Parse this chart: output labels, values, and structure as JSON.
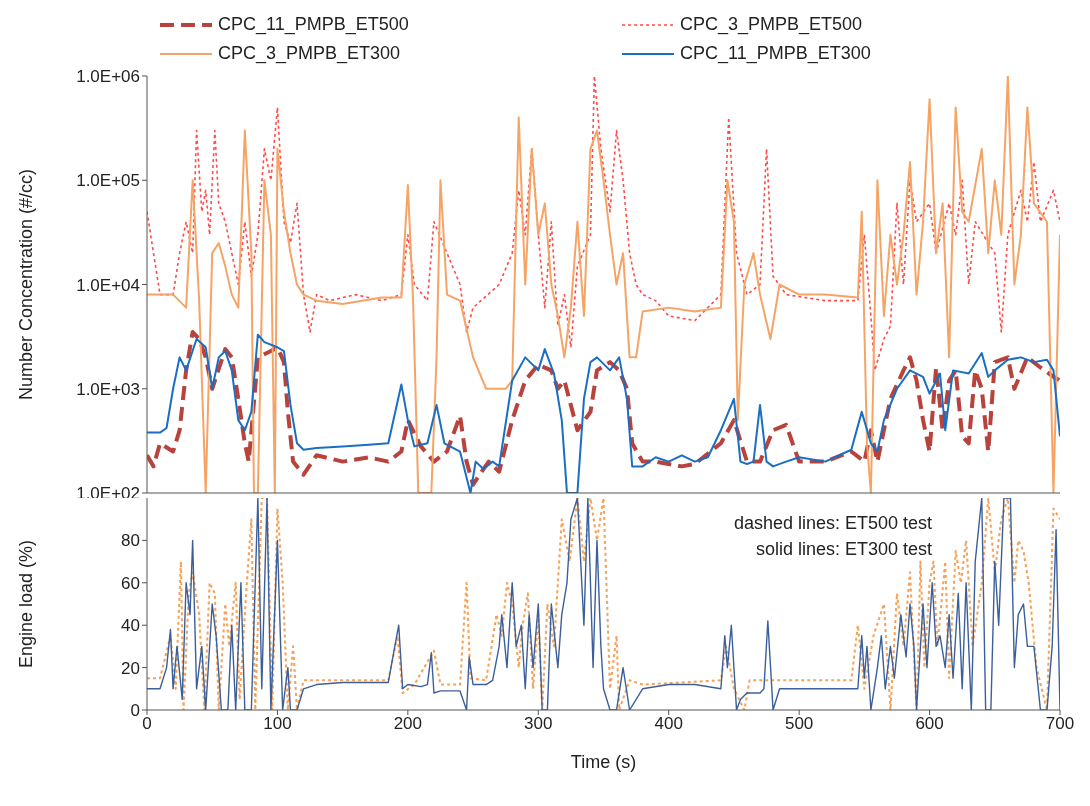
{
  "chart_data": [
    {
      "type": "line",
      "ylabel": "Number Concentration (#/cc)",
      "log": "y",
      "legend": "top",
      "tick_labels": "y",
      "xlim": [
        0,
        700
      ],
      "xticks": [
        0,
        100,
        200,
        300,
        400,
        500,
        600,
        700
      ],
      "ylim": [
        100,
        1000000
      ],
      "yticks": [
        {
          "value": 100,
          "label": "1.0E+02"
        },
        {
          "value": 1000,
          "label": "1.0E+03"
        },
        {
          "value": 10000,
          "label": "1.0E+04"
        },
        {
          "value": 100000,
          "label": "1.0E+05"
        },
        {
          "value": 1000000,
          "label": "1.0E+06"
        }
      ],
      "grid": false,
      "series": [
        {
          "name": "CPC_11_PMPB_ET500",
          "color": "#b8423c",
          "line_style": "dashed",
          "x": [
            0,
            5,
            10,
            20,
            25,
            30,
            35,
            40,
            45,
            50,
            60,
            65,
            70,
            75,
            78,
            85,
            95,
            100,
            105,
            108,
            112,
            120,
            130,
            150,
            170,
            185,
            195,
            200,
            210,
            220,
            230,
            240,
            245,
            250,
            255,
            262,
            270,
            280,
            290,
            300,
            310,
            315,
            320,
            330,
            340,
            345,
            355,
            362,
            368,
            372,
            380,
            390,
            410,
            420,
            440,
            450,
            460,
            470,
            480,
            490,
            500,
            520,
            540,
            550,
            555,
            560,
            570,
            580,
            585,
            590,
            595,
            600,
            605,
            610,
            615,
            620,
            625,
            630,
            635,
            640,
            645,
            650,
            660,
            665,
            675,
            685,
            695,
            700
          ],
          "values": [
            230,
            180,
            300,
            250,
            400,
            1500,
            3500,
            3000,
            2000,
            1000,
            2400,
            2000,
            800,
            300,
            200,
            2000,
            2300,
            2500,
            1800,
            600,
            200,
            150,
            230,
            200,
            220,
            200,
            250,
            500,
            280,
            200,
            250,
            550,
            200,
            120,
            150,
            200,
            160,
            500,
            1200,
            1700,
            1500,
            1000,
            1200,
            400,
            600,
            1500,
            1800,
            1500,
            1000,
            300,
            200,
            200,
            180,
            190,
            300,
            500,
            200,
            200,
            400,
            450,
            200,
            200,
            250,
            200,
            400,
            200,
            800,
            1500,
            2000,
            1200,
            500,
            250,
            1600,
            400,
            1200,
            1500,
            350,
            300,
            1500,
            1000,
            250,
            1800,
            2000,
            1000,
            2000,
            1600,
            1300,
            1200
          ]
        },
        {
          "name": "CPC_3_PMPB_ET500",
          "color": "#ff4a4a",
          "line_style": "dotted",
          "x": [
            0,
            5,
            10,
            20,
            25,
            30,
            35,
            38,
            42,
            45,
            48,
            52,
            55,
            60,
            65,
            70,
            75,
            80,
            85,
            90,
            95,
            100,
            105,
            110,
            115,
            120,
            125,
            130,
            140,
            160,
            180,
            195,
            200,
            205,
            215,
            220,
            230,
            240,
            245,
            250,
            270,
            280,
            285,
            290,
            295,
            300,
            305,
            310,
            315,
            320,
            325,
            330,
            340,
            343,
            348,
            355,
            360,
            365,
            370,
            375,
            380,
            390,
            400,
            420,
            440,
            446,
            452,
            460,
            470,
            475,
            480,
            490,
            520,
            545,
            550,
            555,
            558,
            565,
            570,
            575,
            580,
            585,
            590,
            600,
            605,
            615,
            620,
            625,
            630,
            635,
            645,
            650,
            655,
            660,
            670,
            675,
            680,
            685,
            695,
            700
          ],
          "values": [
            50000,
            20000,
            8000,
            8000,
            20000,
            40000,
            20000,
            300000,
            50000,
            80000,
            30000,
            300000,
            60000,
            40000,
            20000,
            10000,
            40000,
            12000,
            30000,
            200000,
            100000,
            500000,
            40000,
            25000,
            60000,
            8000,
            3500,
            8000,
            7000,
            8000,
            7000,
            8000,
            30000,
            10000,
            7000,
            40000,
            20000,
            10000,
            3500,
            6000,
            10000,
            20000,
            80000,
            30000,
            200000,
            30000,
            6000,
            40000,
            4000,
            8000,
            2500,
            15000,
            30000,
            1000000,
            200000,
            50000,
            300000,
            100000,
            20000,
            10000,
            8000,
            7000,
            5000,
            4500,
            8000,
            400000,
            20000,
            8000,
            10000,
            200000,
            12000,
            8000,
            7000,
            7000,
            30000,
            5000,
            1500,
            3000,
            4000,
            60000,
            10000,
            100000,
            40000,
            60000,
            20000,
            60000,
            30000,
            100000,
            10000,
            40000,
            25000,
            20000,
            3500,
            30000,
            80000,
            40000,
            150000,
            40000,
            80000,
            40000
          ]
        },
        {
          "name": "CPC_3_PMPB_ET300",
          "color": "#f5a466",
          "line_style": "solid",
          "x": [
            0,
            20,
            30,
            35,
            40,
            45,
            50,
            55,
            60,
            65,
            70,
            75,
            80,
            82,
            85,
            90,
            95,
            98,
            100,
            105,
            110,
            115,
            120,
            130,
            150,
            180,
            195,
            200,
            204,
            208,
            218,
            222,
            225,
            230,
            240,
            250,
            260,
            275,
            280,
            285,
            290,
            295,
            300,
            305,
            310,
            315,
            320,
            325,
            330,
            335,
            340,
            345,
            350,
            355,
            360,
            365,
            370,
            375,
            380,
            400,
            420,
            440,
            445,
            450,
            453,
            458,
            465,
            470,
            478,
            485,
            500,
            520,
            545,
            548,
            552,
            555,
            560,
            565,
            570,
            575,
            580,
            585,
            590,
            595,
            600,
            605,
            610,
            615,
            620,
            625,
            630,
            640,
            645,
            650,
            655,
            660,
            665,
            670,
            675,
            680,
            690,
            695,
            700
          ],
          "values": [
            8000,
            8000,
            6000,
            100000,
            7000,
            100,
            20000,
            25000,
            15000,
            8000,
            6000,
            300000,
            20000,
            100,
            100,
            100000,
            30000,
            100,
            200000,
            50000,
            20000,
            10000,
            8000,
            7000,
            6500,
            7500,
            7500,
            90000,
            7000,
            100,
            100,
            2000,
            100000,
            8000,
            7000,
            2000,
            1000,
            1000,
            1200,
            400000,
            10000,
            200000,
            30000,
            60000,
            10000,
            5000,
            2000,
            6000,
            40000,
            5000,
            200000,
            300000,
            100000,
            30000,
            10000,
            20000,
            2000,
            2000,
            5500,
            6000,
            5500,
            6000,
            100000,
            40000,
            500,
            10000,
            20000,
            8000,
            3000,
            10000,
            8000,
            8000,
            7500,
            50000,
            300,
            100,
            100000,
            5000,
            30000,
            10000,
            30000,
            150000,
            8000,
            40000,
            600000,
            20000,
            60000,
            2000,
            500000,
            50000,
            40000,
            200000,
            20000,
            100000,
            30000,
            1000000,
            10000,
            30000,
            500000,
            60000,
            40000,
            100,
            30000
          ]
        },
        {
          "name": "CPC_11_PMPB_ET300",
          "color": "#1a6fc2",
          "line_style": "solid",
          "x": [
            0,
            10,
            15,
            20,
            25,
            30,
            38,
            45,
            50,
            55,
            60,
            65,
            70,
            75,
            80,
            85,
            90,
            100,
            105,
            110,
            115,
            120,
            130,
            150,
            170,
            185,
            195,
            200,
            205,
            215,
            222,
            228,
            240,
            248,
            252,
            258,
            265,
            270,
            280,
            290,
            300,
            305,
            312,
            318,
            322,
            330,
            335,
            340,
            345,
            355,
            362,
            368,
            372,
            380,
            390,
            400,
            410,
            420,
            430,
            440,
            450,
            455,
            460,
            465,
            470,
            475,
            480,
            490,
            500,
            520,
            540,
            548,
            555,
            560,
            565,
            575,
            585,
            595,
            600,
            608,
            612,
            618,
            630,
            640,
            645,
            650,
            660,
            670,
            680,
            690,
            695,
            700
          ],
          "values": [
            380,
            380,
            420,
            1000,
            2000,
            1500,
            3000,
            2500,
            1000,
            2000,
            2300,
            1500,
            500,
            400,
            600,
            3300,
            2800,
            2500,
            2300,
            700,
            300,
            260,
            270,
            280,
            290,
            300,
            1100,
            500,
            280,
            300,
            700,
            300,
            250,
            100,
            200,
            170,
            200,
            180,
            1200,
            2000,
            1500,
            2400,
            1400,
            500,
            100,
            100,
            800,
            1800,
            2000,
            1500,
            2000,
            800,
            180,
            180,
            220,
            200,
            230,
            200,
            220,
            400,
            800,
            200,
            190,
            200,
            700,
            200,
            180,
            200,
            220,
            200,
            260,
            600,
            300,
            250,
            500,
            1000,
            1500,
            1300,
            900,
            1400,
            400,
            1500,
            1400,
            2200,
            1300,
            1500,
            1900,
            2000,
            1800,
            1900,
            1500,
            350
          ]
        }
      ]
    },
    {
      "type": "line",
      "xlabel": "Time (s)",
      "ylabel": "Engine load (%)",
      "xlim": [
        0,
        700
      ],
      "xticks": [
        0,
        100,
        200,
        300,
        400,
        500,
        600,
        700
      ],
      "ylim": [
        0,
        100
      ],
      "yticks": [
        0,
        20,
        40,
        60,
        80
      ],
      "grid": false,
      "annotations": [
        "dashed lines: ET500 test",
        "solid lines: ET300 test"
      ],
      "series": [
        {
          "color": "#f5a35a",
          "line_style": "dotted",
          "x": [
            0,
            10,
            18,
            22,
            26,
            28,
            32,
            35,
            40,
            44,
            48,
            52,
            55,
            60,
            63,
            68,
            71,
            76,
            80,
            83,
            88,
            92,
            96,
            100,
            104,
            108,
            112,
            115,
            120,
            140,
            185,
            192,
            196,
            205,
            220,
            225,
            240,
            245,
            248,
            260,
            268,
            272,
            276,
            280,
            285,
            288,
            292,
            296,
            300,
            303,
            307,
            312,
            318,
            324,
            330,
            335,
            340,
            345,
            350,
            355,
            360,
            362,
            370,
            380,
            440,
            444,
            450,
            458,
            462,
            490,
            540,
            545,
            550,
            557,
            565,
            570,
            575,
            580,
            585,
            590,
            593,
            596,
            600,
            603,
            606,
            612,
            615,
            620,
            624,
            628,
            633,
            640,
            645,
            650,
            655,
            660,
            665,
            668,
            672,
            676,
            682,
            690,
            695,
            700
          ],
          "values": [
            15,
            15,
            35,
            10,
            70,
            0,
            55,
            65,
            45,
            0,
            60,
            55,
            0,
            50,
            30,
            60,
            5,
            55,
            90,
            0,
            100,
            100,
            0,
            95,
            60,
            0,
            30,
            0,
            14,
            14,
            14,
            35,
            8,
            12,
            28,
            12,
            12,
            60,
            15,
            14,
            45,
            35,
            60,
            50,
            20,
            40,
            55,
            10,
            45,
            0,
            50,
            30,
            90,
            70,
            100,
            70,
            100,
            80,
            100,
            10,
            35,
            0,
            14,
            12,
            14,
            30,
            10,
            0,
            14,
            14,
            14,
            40,
            10,
            35,
            50,
            0,
            55,
            30,
            65,
            0,
            70,
            20,
            60,
            70,
            30,
            70,
            15,
            75,
            60,
            80,
            30,
            60,
            100,
            65,
            90,
            100,
            60,
            80,
            75,
            60,
            20,
            0,
            95,
            90
          ]
        },
        {
          "color": "#3b5f9a",
          "line_style": "solid",
          "x": [
            0,
            10,
            15,
            18,
            20,
            23,
            27,
            30,
            33,
            35,
            38,
            42,
            45,
            50,
            53,
            57,
            62,
            65,
            68,
            72,
            75,
            80,
            85,
            88,
            92,
            95,
            100,
            104,
            108,
            110,
            115,
            120,
            130,
            150,
            170,
            185,
            190,
            193,
            196,
            200,
            210,
            215,
            218,
            220,
            225,
            240,
            245,
            247,
            250,
            260,
            265,
            270,
            272,
            276,
            280,
            283,
            287,
            290,
            293,
            296,
            300,
            303,
            307,
            310,
            315,
            318,
            322,
            325,
            330,
            335,
            338,
            342,
            345,
            348,
            350,
            355,
            360,
            365,
            370,
            380,
            400,
            420,
            440,
            443,
            445,
            448,
            452,
            455,
            460,
            470,
            473,
            476,
            480,
            485,
            500,
            520,
            545,
            548,
            550,
            552,
            555,
            560,
            563,
            566,
            570,
            573,
            578,
            582,
            585,
            588,
            590,
            595,
            598,
            602,
            605,
            608,
            612,
            615,
            618,
            622,
            625,
            628,
            632,
            635,
            640,
            643,
            647,
            650,
            653,
            657,
            662,
            665,
            668,
            672,
            675,
            680,
            685,
            690,
            694,
            697,
            700
          ],
          "values": [
            10,
            10,
            20,
            38,
            10,
            30,
            5,
            60,
            45,
            80,
            10,
            30,
            0,
            50,
            35,
            0,
            0,
            40,
            0,
            60,
            0,
            0,
            100,
            10,
            100,
            0,
            80,
            0,
            20,
            0,
            0,
            10,
            12,
            13,
            13,
            13,
            30,
            40,
            10,
            12,
            11,
            12,
            27,
            8,
            9,
            9,
            0,
            25,
            12,
            12,
            14,
            30,
            45,
            20,
            60,
            30,
            40,
            10,
            45,
            20,
            50,
            0,
            0,
            50,
            20,
            45,
            60,
            90,
            100,
            40,
            100,
            20,
            80,
            30,
            10,
            0,
            0,
            20,
            0,
            10,
            12,
            12,
            10,
            35,
            20,
            40,
            0,
            5,
            8,
            8,
            10,
            42,
            0,
            10,
            10,
            10,
            10,
            35,
            15,
            30,
            0,
            20,
            35,
            10,
            30,
            15,
            45,
            25,
            50,
            30,
            0,
            50,
            20,
            60,
            30,
            35,
            20,
            45,
            15,
            55,
            10,
            60,
            0,
            70,
            100,
            0,
            0,
            70,
            40,
            100,
            100,
            20,
            45,
            50,
            30,
            30,
            0,
            0,
            30,
            85,
            0
          ]
        }
      ]
    }
  ]
}
